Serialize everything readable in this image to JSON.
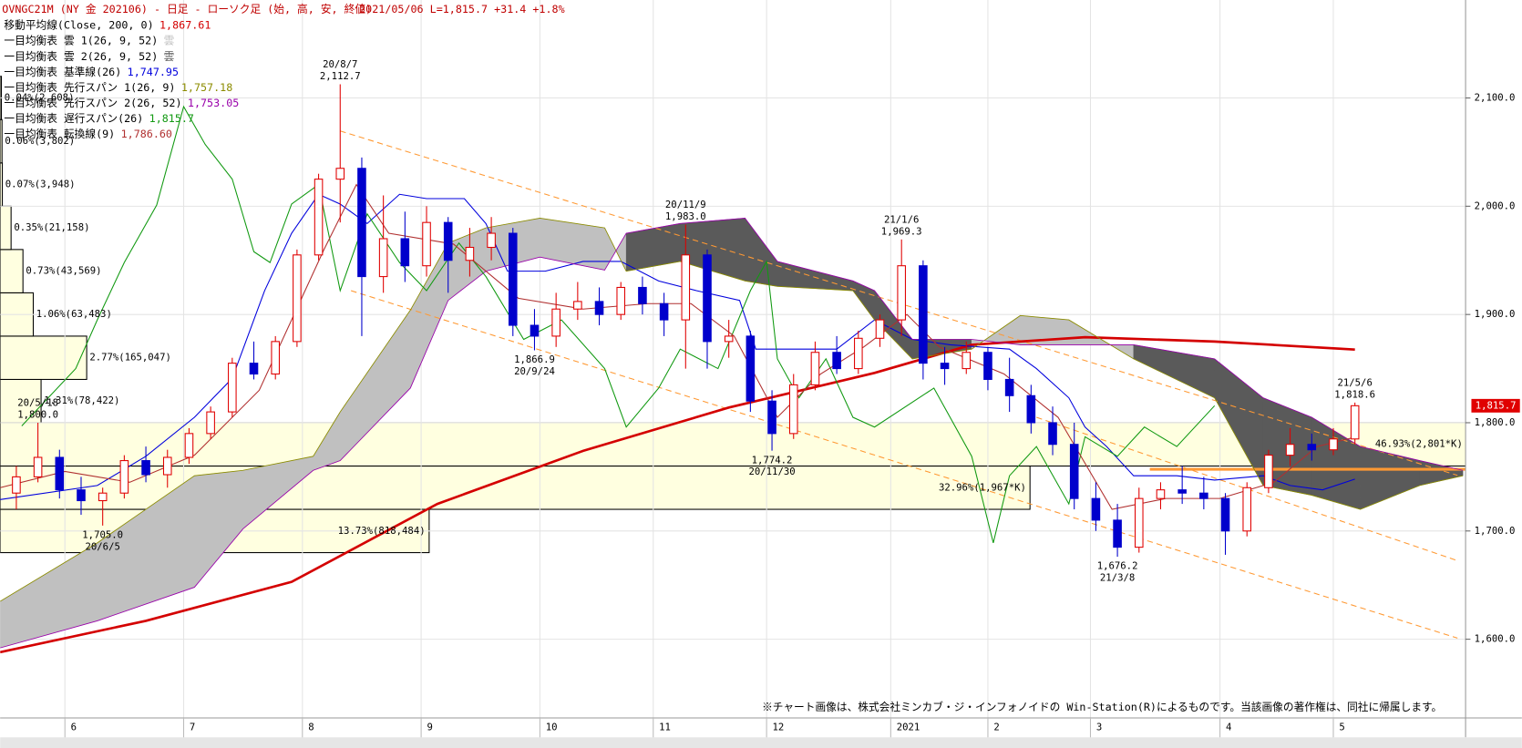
{
  "chart_data": {
    "type": "candlestick",
    "title": "OVNGC21M (NY 金 202106) - 日足 - ローソク足 (始, 高, 安, 終値)",
    "subtitle": "2021/05/06 L=1,815.7 +31.4 +1.8%",
    "footnote": "※チャート画像は、株式会社ミンカブ・ジ・インフォノイドの Win-Station(R)によるものです。当該画像の著作権は、同社に帰属します。",
    "up_color": "#e00000",
    "down_color": "#0000cc",
    "x": [
      3,
      7,
      11,
      15,
      19,
      23,
      27,
      31,
      35,
      39,
      43,
      47,
      51,
      55,
      59,
      63,
      67,
      71,
      75,
      79,
      83,
      87,
      91,
      95,
      99,
      103,
      107,
      111,
      115,
      119,
      123,
      127,
      131,
      135,
      139,
      143,
      147,
      151,
      155,
      159,
      163,
      167,
      171,
      175,
      179,
      183,
      187,
      191,
      195,
      199,
      203,
      207,
      211,
      215,
      219,
      223,
      227,
      231,
      235,
      239,
      243,
      247,
      251
    ],
    "open": [
      1735,
      1750,
      1768,
      1738,
      1728,
      1735,
      1765,
      1752,
      1768,
      1790,
      1810,
      1855,
      1845,
      1875,
      1955,
      2025,
      2035,
      1935,
      1970,
      1945,
      1985,
      1950,
      1962,
      1975,
      1890,
      1880,
      1905,
      1912,
      1900,
      1925,
      1910,
      1895,
      1955,
      1875,
      1880,
      1820,
      1790,
      1835,
      1865,
      1850,
      1878,
      1895,
      1945,
      1855,
      1850,
      1865,
      1840,
      1825,
      1800,
      1780,
      1730,
      1710,
      1685,
      1730,
      1738,
      1735,
      1730,
      1700,
      1740,
      1770,
      1780,
      1775,
      1785
    ],
    "high": [
      1760,
      1800,
      1775,
      1750,
      1740,
      1770,
      1778,
      1775,
      1795,
      1815,
      1860,
      1875,
      1880,
      1960,
      2030,
      2112.7,
      2045,
      2010,
      1995,
      2000,
      1990,
      1980,
      1990,
      1980,
      1905,
      1920,
      1930,
      1925,
      1930,
      1935,
      1920,
      1983,
      1960,
      1895,
      1885,
      1830,
      1845,
      1875,
      1880,
      1885,
      1900,
      1969.3,
      1950,
      1870,
      1875,
      1870,
      1860,
      1835,
      1815,
      1800,
      1745,
      1725,
      1740,
      1745,
      1760,
      1750,
      1735,
      1745,
      1775,
      1795,
      1790,
      1795,
      1818.6
    ],
    "low": [
      1720,
      1745,
      1730,
      1715,
      1705,
      1730,
      1745,
      1740,
      1762,
      1785,
      1805,
      1840,
      1840,
      1870,
      1950,
      1985,
      1880,
      1920,
      1930,
      1935,
      1920,
      1935,
      1950,
      1880,
      1866.9,
      1870,
      1895,
      1890,
      1895,
      1900,
      1880,
      1850,
      1850,
      1860,
      1810,
      1774.2,
      1785,
      1830,
      1845,
      1845,
      1870,
      1880,
      1840,
      1835,
      1845,
      1830,
      1810,
      1790,
      1770,
      1720,
      1700,
      1676.2,
      1680,
      1720,
      1725,
      1720,
      1678,
      1695,
      1735,
      1760,
      1765,
      1770,
      1780
    ],
    "close": [
      1750,
      1768,
      1738,
      1728,
      1735,
      1765,
      1752,
      1768,
      1790,
      1810,
      1855,
      1845,
      1875,
      1955,
      2025,
      2035,
      1935,
      1970,
      1945,
      1985,
      1950,
      1962,
      1975,
      1890,
      1880,
      1905,
      1912,
      1900,
      1925,
      1910,
      1895,
      1955,
      1875,
      1880,
      1820,
      1790,
      1835,
      1865,
      1850,
      1878,
      1895,
      1945,
      1855,
      1850,
      1865,
      1840,
      1825,
      1800,
      1780,
      1730,
      1710,
      1685,
      1730,
      1738,
      1735,
      1730,
      1700,
      1740,
      1770,
      1780,
      1775,
      1785,
      1815.7
    ],
    "xlim": [
      0,
      271.5
    ],
    "xticks": [
      {
        "value": 12,
        "label": "6"
      },
      {
        "value": 34,
        "label": "7"
      },
      {
        "value": 56,
        "label": "8"
      },
      {
        "value": 78,
        "label": "9"
      },
      {
        "value": 100,
        "label": "10"
      },
      {
        "value": 121,
        "label": "11"
      },
      {
        "value": 142,
        "label": "12"
      },
      {
        "value": 165,
        "label": "2021"
      },
      {
        "value": 183,
        "label": "2"
      },
      {
        "value": 202,
        "label": "3"
      },
      {
        "value": 226,
        "label": "4"
      },
      {
        "value": 247,
        "label": "5"
      }
    ],
    "ylim": [
      1527.3,
      2190.5
    ],
    "yticks": [
      {
        "value": 1600,
        "label": "1,600.0"
      },
      {
        "value": 1700,
        "label": "1,700.0"
      },
      {
        "value": 1800,
        "label": "1,800.0"
      },
      {
        "value": 1900,
        "label": "1,900.0"
      },
      {
        "value": 2000,
        "label": "2,000.0"
      },
      {
        "value": 2100,
        "label": "2,100.0"
      }
    ],
    "last_price": {
      "value": 1815.7,
      "label": "1,815.7"
    },
    "annotations": [
      {
        "date": "20/5/18",
        "value": 1800,
        "label": "1,800.0",
        "x": 7,
        "side": "high"
      },
      {
        "date": "20/6/5",
        "value": 1705,
        "label": "1,705.0",
        "x": 19,
        "side": "low"
      },
      {
        "date": "20/8/7",
        "value": 2112.7,
        "label": "2,112.7",
        "x": 63,
        "side": "high"
      },
      {
        "date": "20/9/24",
        "value": 1866.9,
        "label": "1,866.9",
        "x": 99,
        "side": "low"
      },
      {
        "date": "20/11/9",
        "value": 1983,
        "label": "1,983.0",
        "x": 127,
        "side": "high"
      },
      {
        "date": "20/11/30",
        "value": 1774.2,
        "label": "1,774.2",
        "x": 143,
        "side": "low"
      },
      {
        "date": "21/1/6",
        "value": 1969.3,
        "label": "1,969.3",
        "x": 167,
        "side": "high"
      },
      {
        "date": "21/3/8",
        "value": 1676.2,
        "label": "1,676.2",
        "x": 207,
        "side": "low"
      },
      {
        "date": "21/5/6",
        "value": 1818.6,
        "label": "1,818.6",
        "x": 251,
        "side": "high"
      }
    ],
    "series": [
      {
        "name": "移動平均線(Close, 200, 0)",
        "legend_value": "1,867.61",
        "color": "#d40000",
        "width": 2.5,
        "role": "line",
        "x": [
          0,
          27,
          54,
          81,
          108,
          135,
          162,
          180,
          201,
          225,
          251
        ],
        "values": [
          1588,
          1617,
          1653,
          1725,
          1774,
          1814,
          1846,
          1872,
          1879,
          1875,
          1867.61
        ]
      },
      {
        "name": "一目均衡表 雲 1(26, 9, 52)",
        "legend_value": "雲",
        "color": "#c0c0c0",
        "role": "cloud_up"
      },
      {
        "name": "一目均衡表 雲 2(26, 9, 52)",
        "legend_value": "雲",
        "color": "#5a5a5a",
        "role": "cloud_down"
      },
      {
        "name": "一目均衡表 基準線(26)",
        "legend_value": "1,747.95",
        "color": "#0000dd",
        "width": 1,
        "role": "line",
        "x": [
          0,
          18,
          27,
          36,
          43,
          49,
          54,
          59,
          63,
          68,
          74,
          79,
          86,
          90,
          94,
          101,
          108,
          115,
          122,
          129,
          137,
          140,
          147,
          155,
          162,
          169,
          176,
          187,
          192,
          198,
          201,
          205,
          210,
          218,
          225,
          234,
          239,
          245,
          251
        ],
        "values": [
          1729,
          1742,
          1769,
          1805,
          1841,
          1922,
          1975,
          2011,
          2002,
          1984,
          2011,
          2007,
          2007,
          1984,
          1940,
          1940,
          1949,
          1949,
          1931,
          1922,
          1913,
          1868,
          1868,
          1868,
          1895,
          1877,
          1872,
          1868,
          1850,
          1823,
          1796,
          1778,
          1751,
          1751,
          1747,
          1751,
          1742,
          1738,
          1747.95
        ]
      },
      {
        "name": "一目均衡表 先行スパン 1(26, 9)",
        "legend_value": "1,757.18",
        "color": "#8c8c00",
        "width": 0.8,
        "role": "span1",
        "x": [
          0,
          18,
          36,
          45,
          58,
          63,
          76,
          83,
          90,
          100,
          112,
          116,
          126,
          138,
          144,
          158,
          162,
          169,
          180,
          189,
          198,
          210,
          225,
          234,
          243,
          252,
          263,
          271
        ],
        "values": [
          1635,
          1689,
          1751,
          1756,
          1769,
          1810,
          1904,
          1966,
          1980,
          1989,
          1980,
          1940,
          1949,
          1931,
          1926,
          1922,
          1895,
          1859,
          1868,
          1899,
          1895,
          1859,
          1823,
          1742,
          1733,
          1720,
          1742,
          1751
        ]
      },
      {
        "name": "一目均衡表 先行スパン 2(26, 52)",
        "legend_value": "1,753.05",
        "color": "#9900aa",
        "width": 0.8,
        "role": "span2",
        "x": [
          0,
          18,
          36,
          45,
          58,
          63,
          76,
          83,
          90,
          100,
          112,
          116,
          126,
          138,
          144,
          158,
          162,
          169,
          180,
          189,
          198,
          210,
          225,
          234,
          243,
          252,
          263,
          271
        ],
        "values": [
          1592,
          1617,
          1648,
          1702,
          1756,
          1765,
          1832,
          1913,
          1940,
          1953,
          1941,
          1975,
          1984,
          1989,
          1949,
          1931,
          1922,
          1877,
          1877,
          1872,
          1872,
          1872,
          1859,
          1823,
          1805,
          1778,
          1765,
          1756
        ]
      },
      {
        "name": "一目均衡表 遅行スパン(26)",
        "legend_value": "1,815.7",
        "color": "#119911",
        "width": 1,
        "role": "line",
        "x": [
          4,
          14,
          18,
          23,
          29,
          34,
          38,
          43,
          47,
          50,
          54,
          59,
          63,
          68,
          74,
          79,
          85,
          90,
          97,
          104,
          112,
          116,
          122,
          126,
          133,
          139,
          142,
          144,
          148,
          153,
          158,
          162,
          173,
          180,
          184,
          187,
          192,
          198,
          201,
          207,
          212,
          218,
          225
        ],
        "values": [
          1797,
          1850,
          1895,
          1948,
          2001,
          2092,
          2057,
          2025,
          1958,
          1948,
          2002,
          2020,
          1922,
          1993,
          1948,
          1922,
          1966,
          1935,
          1877,
          1895,
          1850,
          1796,
          1832,
          1868,
          1850,
          1922,
          1949,
          1859,
          1823,
          1859,
          1805,
          1796,
          1832,
          1769,
          1689,
          1751,
          1778,
          1725,
          1787,
          1769,
          1796,
          1778,
          1815.7
        ]
      },
      {
        "name": "一目均衡表 転換線(9)",
        "legend_value": "1,786.60",
        "color": "#b03030",
        "width": 1,
        "role": "line",
        "x": [
          0,
          12,
          24,
          36,
          48,
          60,
          66,
          72,
          84,
          96,
          108,
          120,
          128,
          136,
          144,
          152,
          160,
          168,
          174,
          186,
          196,
          206,
          216,
          226,
          236,
          244,
          251
        ],
        "values": [
          1740,
          1755,
          1745,
          1770,
          1830,
          1960,
          2020,
          1975,
          1965,
          1915,
          1905,
          1910,
          1910,
          1880,
          1805,
          1845,
          1870,
          1900,
          1870,
          1845,
          1805,
          1720,
          1730,
          1730,
          1745,
          1778,
          1786.6
        ]
      }
    ],
    "trendlines": {
      "color": "#ff9933",
      "lines": [
        {
          "x": [
            63,
            270
          ],
          "values": [
            2069.5,
            1751.4
          ]
        },
        {
          "x": [
            192,
            270
          ],
          "values": [
            1805,
            1672.6
          ]
        },
        {
          "x": [
            65,
            270
          ],
          "values": [
            1922,
            1601
          ]
        }
      ]
    },
    "level_line": {
      "value": 1757,
      "x": [
        213,
        271.5
      ],
      "color": "#ff9933"
    },
    "profile": {
      "bins": [
        1680,
        1720,
        1760,
        1800,
        1840,
        1880,
        1920,
        1960,
        2000,
        2040,
        2080,
        2120
      ],
      "percent": [
        13.73,
        32.96,
        46.93,
        1.31,
        2.77,
        1.06,
        0.73,
        0.35,
        0.07,
        0.06,
        0.04
      ],
      "labels": [
        "13.73%(818,484)",
        "32.96%(1,967*K)",
        "46.93%(2,801*K)",
        "1.31%(78,422)",
        "2.77%(165,047)",
        "1.06%(63,483)",
        "0.73%(43,569)",
        "0.35%(21,158)",
        "0.07%(3,948)",
        "0.06%(3,802)",
        "0.04%(2,608)"
      ],
      "xlim": [
        0,
        46.9
      ],
      "color": "#ffffe0"
    }
  }
}
